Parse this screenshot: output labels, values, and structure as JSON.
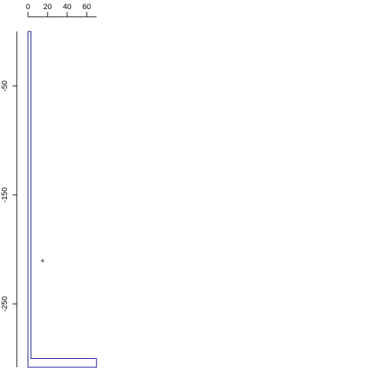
{
  "chart_data": {
    "type": "line",
    "title": "",
    "xlabel": "",
    "ylabel": "",
    "x_axis_position": "top",
    "y_axis_position": "left",
    "xlim": [
      0,
      70
    ],
    "ylim": [
      -308,
      0
    ],
    "x_ticks": [
      0,
      20,
      40,
      60
    ],
    "x_tick_labels": [
      "0",
      "20",
      "40",
      "60"
    ],
    "y_ticks": [
      -50,
      -150,
      -250
    ],
    "y_tick_labels": [
      "-50",
      "-150",
      "-250"
    ],
    "grid": false,
    "legend": "none",
    "series": [
      {
        "kind": "outline",
        "color": "#00008B",
        "points": [
          [
            0,
            0
          ],
          [
            3,
            0
          ],
          [
            3,
            -300
          ],
          [
            70,
            -300
          ],
          [
            70,
            -308
          ],
          [
            0,
            -308
          ],
          [
            0,
            0
          ]
        ]
      }
    ],
    "markers": [
      {
        "x": 15,
        "y": -210,
        "symbol": "+",
        "color": "#000000"
      }
    ]
  }
}
